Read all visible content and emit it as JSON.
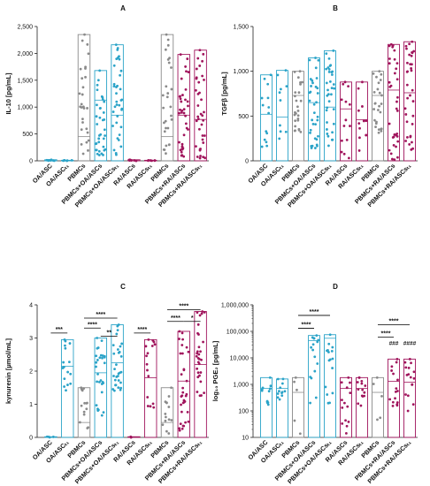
{
  "colors": {
    "OA": "#2aa3c8",
    "PBMC": "#8a8a8a",
    "RA": "#a0145c",
    "axis": "#222222"
  },
  "chart_data": [
    {
      "panel": "A",
      "type": "bar-dot",
      "ylabel": "IL-10 [pg/mL]",
      "ylim": [
        0,
        2500
      ],
      "yticks": [
        0,
        500,
        1000,
        1500,
        2000,
        2500
      ],
      "ytick_labels": [
        "0",
        "500",
        "1,000",
        "1,500",
        "2,000",
        "2,500"
      ],
      "scale": "linear",
      "categories": [
        "OA/ASC",
        "OA/ASCₜ₁",
        "PBMCs",
        "PBMCs+OA/ASCs",
        "PBMCs+OA/ASCsₜ₁",
        "RA/ASCs",
        "RA/ASCsₜ₁",
        "PBMCs",
        "PBMCs+RA/ASCs",
        "PBMCs+RA/ASCsₜ₁"
      ],
      "groups": [
        "OA",
        "OA",
        "PBMC",
        "OA",
        "OA",
        "RA",
        "RA",
        "PBMC",
        "RA",
        "RA"
      ],
      "max": [
        20,
        10,
        2350,
        1680,
        2160,
        20,
        10,
        2350,
        1980,
        2060
      ],
      "median": [
        5,
        5,
        450,
        1130,
        850,
        5,
        5,
        450,
        850,
        770
      ],
      "spread_min": [
        0,
        0,
        50,
        100,
        60,
        0,
        0,
        50,
        80,
        50
      ],
      "n_points": [
        8,
        6,
        28,
        36,
        36,
        8,
        6,
        28,
        38,
        38
      ],
      "significance": [],
      "hash_marks": []
    },
    {
      "panel": "B",
      "type": "bar-dot",
      "ylabel": "TGFβ [pg/mL]",
      "ylim": [
        0,
        1500
      ],
      "yticks": [
        0,
        500,
        1000,
        1500
      ],
      "ytick_labels": [
        "0",
        "500",
        "1,000",
        "1,500"
      ],
      "scale": "linear",
      "categories": [
        "OA/ASC",
        "OA/ASCₜ₁",
        "PBMCs",
        "PBMCs+OA/ASCs",
        "PBMCs+OA/ASCsₜ₁",
        "RA/ASCs",
        "RA/ASCsₜ₁",
        "PBMCs",
        "PBMCs+RA/ASCs",
        "PBMCs+RA/ASCsₜ₁"
      ],
      "groups": [
        "OA",
        "OA",
        "PBMC",
        "OA",
        "OA",
        "RA",
        "RA",
        "PBMC",
        "RA",
        "RA"
      ],
      "max": [
        960,
        1010,
        1000,
        1150,
        1230,
        880,
        880,
        1000,
        1300,
        1330
      ],
      "median": [
        520,
        490,
        730,
        650,
        600,
        580,
        460,
        730,
        790,
        760
      ],
      "spread_min": [
        150,
        60,
        300,
        60,
        150,
        10,
        100,
        300,
        10,
        120
      ],
      "n_points": [
        14,
        10,
        26,
        34,
        34,
        14,
        12,
        26,
        34,
        34
      ],
      "significance": [],
      "hash_marks": []
    },
    {
      "panel": "C",
      "type": "bar-dot",
      "ylabel": "kynurenin [µmol/mL]",
      "ylim": [
        0,
        4
      ],
      "yticks": [
        0,
        1,
        2,
        3,
        4
      ],
      "ytick_labels": [
        "0",
        "1",
        "2",
        "3",
        "4"
      ],
      "scale": "linear",
      "categories": [
        "OA/ASC",
        "OA/ASCₜ₁",
        "PBMCs",
        "PBMCs+OA/ASCs",
        "PBMCs+OA/ASCsₜ₁",
        "RA/ASCs",
        "RA/ASCsₜ₁",
        "PBMCs",
        "PBMCs+RA/ASCs",
        "PBMCs+RA/ASCsₜ₁"
      ],
      "groups": [
        "OA",
        "OA",
        "PBMC",
        "OA",
        "OA",
        "RA",
        "RA",
        "PBMC",
        "RA",
        "RA"
      ],
      "max": [
        0.02,
        2.95,
        1.5,
        3.0,
        3.4,
        0.02,
        2.95,
        1.5,
        3.2,
        3.8
      ],
      "median": [
        0.01,
        2.15,
        0.45,
        1.95,
        2.25,
        0.01,
        1.8,
        0.45,
        1.7,
        2.2
      ],
      "spread_min": [
        0,
        1.4,
        0.05,
        0.6,
        1.4,
        0,
        0.9,
        0.05,
        0.05,
        1.0
      ],
      "n_points": [
        4,
        16,
        14,
        30,
        30,
        4,
        16,
        14,
        34,
        30
      ],
      "significance": [
        {
          "from": 0,
          "to": 1,
          "y": 3.15,
          "label": "***"
        },
        {
          "from": 2,
          "to": 3,
          "y": 3.3,
          "label": "****"
        },
        {
          "from": 2,
          "to": 4,
          "y": 3.6,
          "label": "****"
        },
        {
          "from": 3,
          "to": 4,
          "y": 3.05,
          "label": "**"
        },
        {
          "from": 5,
          "to": 6,
          "y": 3.15,
          "label": "****"
        },
        {
          "from": 7,
          "to": 8,
          "y": 3.5,
          "label": "****"
        },
        {
          "from": 7,
          "to": 9,
          "y": 3.85,
          "label": "****"
        },
        {
          "from": 8,
          "to": 9,
          "y": 3.5,
          "label": "*"
        }
      ],
      "hash_marks": []
    },
    {
      "panel": "D",
      "type": "bar-dot",
      "ylabel": "log₁₀ PGE₂ [pg/mL]",
      "ylim": [
        10,
        1000000
      ],
      "yticks": [
        10,
        100,
        1000,
        10000,
        100000,
        1000000
      ],
      "ytick_labels": [
        "10",
        "100",
        "1,000",
        "10,000",
        "100,000",
        "1,000,000"
      ],
      "scale": "log",
      "categories": [
        "OA/ASC",
        "OA/ASCₜ₁",
        "PBMCs",
        "PBMCs+OA/ASCs",
        "PBMCs+OA/ASCsₜ₁",
        "RA/ASCs",
        "RA/ASCsₜ₁",
        "PBMCs",
        "PBMCs+RA/ASCs",
        "PBMCs+RA/ASCsₜ₁"
      ],
      "groups": [
        "OA",
        "OA",
        "PBMC",
        "OA",
        "OA",
        "RA",
        "RA",
        "PBMC",
        "RA",
        "RA"
      ],
      "max": [
        1800,
        1600,
        1800,
        70000,
        75000,
        1800,
        1800,
        1800,
        9000,
        9000
      ],
      "median": [
        700,
        700,
        500,
        45000,
        55000,
        700,
        700,
        500,
        1300,
        1200
      ],
      "spread_min": [
        150,
        200,
        12,
        150,
        150,
        12,
        150,
        12,
        100,
        100
      ],
      "n_points": [
        12,
        12,
        5,
        16,
        16,
        14,
        14,
        5,
        16,
        16
      ],
      "significance": [
        {
          "from": 2,
          "to": 3,
          "y": 130000,
          "label": "****"
        },
        {
          "from": 2,
          "to": 4,
          "y": 400000,
          "label": "****"
        },
        {
          "from": 7,
          "to": 8,
          "y": 60000,
          "label": "****"
        },
        {
          "from": 7,
          "to": 9,
          "y": 180000,
          "label": "****"
        }
      ],
      "hash_marks": [
        {
          "index": 8,
          "label": "###"
        },
        {
          "index": 9,
          "label": "####"
        }
      ]
    }
  ]
}
